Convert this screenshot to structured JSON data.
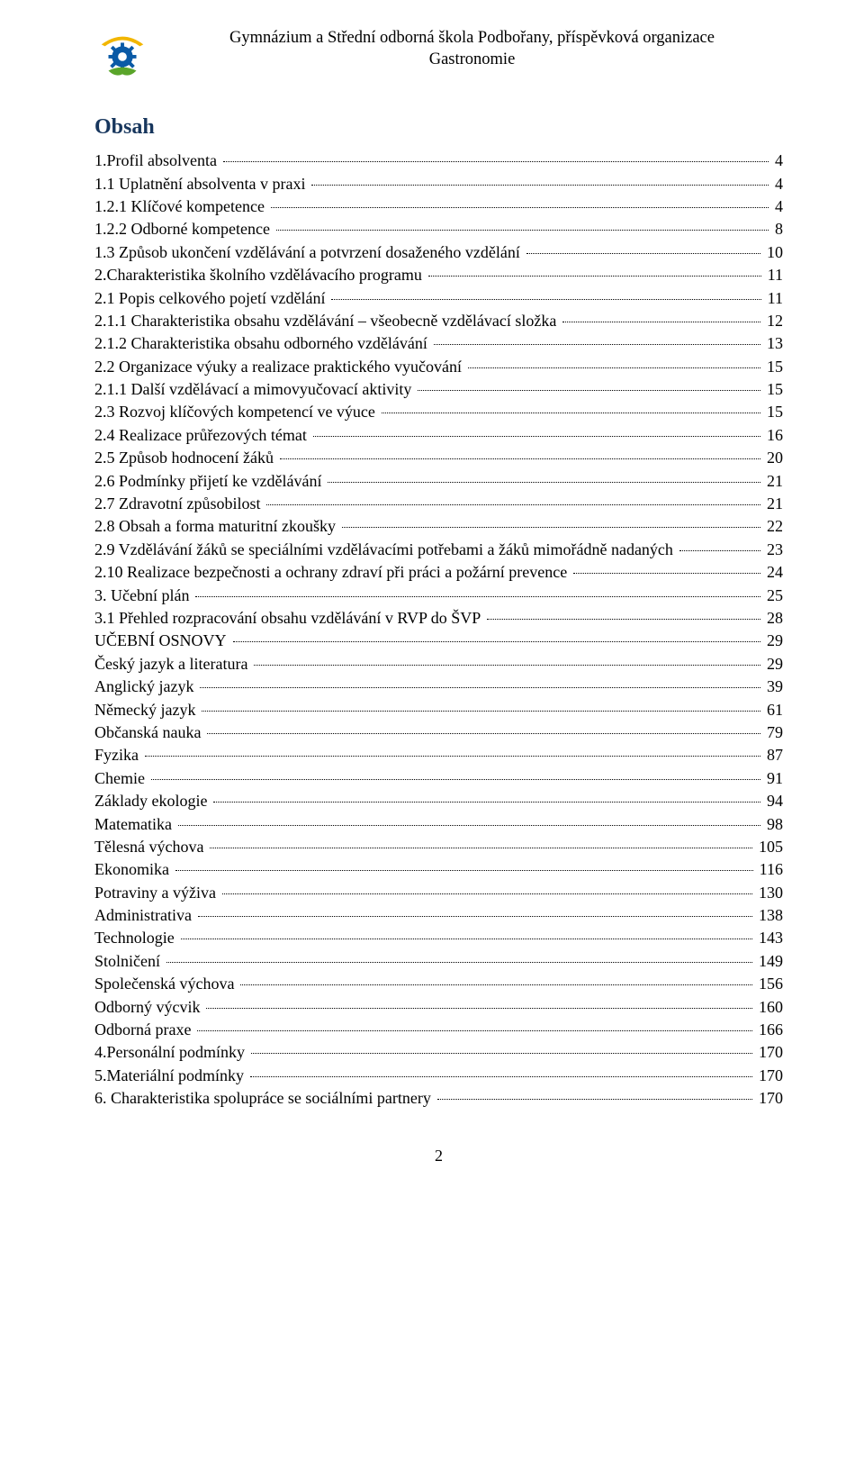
{
  "header": {
    "line1": "Gymnázium a Střední odborná škola Podbořany, příspěvková organizace",
    "line2": "Gastronomie"
  },
  "toc": {
    "title": "Obsah",
    "entries": [
      {
        "label": "1.Profil absolventa",
        "page": "4"
      },
      {
        "label": "1.1 Uplatnění absolventa v praxi",
        "page": "4"
      },
      {
        "label": "1.2.1 Klíčové kompetence",
        "page": "4"
      },
      {
        "label": "1.2.2 Odborné kompetence",
        "page": "8"
      },
      {
        "label": "1.3 Způsob ukončení vzdělávání a potvrzení dosaženého vzdělání",
        "page": "10"
      },
      {
        "label": "2.Charakteristika školního vzdělávacího programu",
        "page": "11"
      },
      {
        "label": "2.1 Popis celkového pojetí vzdělání",
        "page": "11"
      },
      {
        "label": "2.1.1 Charakteristika obsahu vzdělávání – všeobecně vzdělávací složka",
        "page": "12"
      },
      {
        "label": "2.1.2 Charakteristika obsahu odborného vzdělávání",
        "page": "13"
      },
      {
        "label": "2.2 Organizace výuky a realizace praktického vyučování",
        "page": "15"
      },
      {
        "label": "2.1.1 Další vzdělávací a mimovyučovací aktivity",
        "page": "15"
      },
      {
        "label": "2.3 Rozvoj klíčových kompetencí ve výuce",
        "page": "15"
      },
      {
        "label": "2.4 Realizace průřezových témat",
        "page": "16"
      },
      {
        "label": "2.5 Způsob hodnocení žáků",
        "page": "20"
      },
      {
        "label": "2.6 Podmínky přijetí ke vzdělávání",
        "page": "21"
      },
      {
        "label": "2.7 Zdravotní způsobilost",
        "page": "21"
      },
      {
        "label": "2.8 Obsah a forma maturitní zkoušky",
        "page": "22"
      },
      {
        "label": "2.9 Vzdělávání žáků se speciálními vzdělávacími potřebami a žáků mimořádně nadaných",
        "page": "23"
      },
      {
        "label": "2.10 Realizace bezpečnosti a ochrany zdraví při práci a požární prevence",
        "page": "24"
      },
      {
        "label": "3. Učební plán",
        "page": "25"
      },
      {
        "label": "3.1 Přehled rozpracování obsahu vzdělávání v RVP do ŠVP",
        "page": "28"
      },
      {
        "label": "UČEBNÍ OSNOVY",
        "page": "29"
      },
      {
        "label": "Český jazyk a literatura",
        "page": "29"
      },
      {
        "label": "Anglický jazyk",
        "page": "39"
      },
      {
        "label": "Německý jazyk",
        "page": "61"
      },
      {
        "label": "Občanská nauka",
        "page": "79"
      },
      {
        "label": "Fyzika",
        "page": "87"
      },
      {
        "label": "Chemie",
        "page": "91"
      },
      {
        "label": "Základy ekologie",
        "page": "94"
      },
      {
        "label": "Matematika",
        "page": "98"
      },
      {
        "label": "Tělesná výchova",
        "page": "105"
      },
      {
        "label": "Ekonomika",
        "page": "116"
      },
      {
        "label": "Potraviny a výživa",
        "page": "130"
      },
      {
        "label": "Administrativa",
        "page": "138"
      },
      {
        "label": "Technologie",
        "page": "143"
      },
      {
        "label": "Stolničení",
        "page": "149"
      },
      {
        "label": "Společenská výchova",
        "page": "156"
      },
      {
        "label": "Odborný výcvik",
        "page": "160"
      },
      {
        "label": "Odborná praxe",
        "page": "166"
      },
      {
        "label": "4.Personální podmínky",
        "page": "170"
      },
      {
        "label": "5.Materiální podmínky",
        "page": "170"
      },
      {
        "label": "6. Charakteristika spolupráce se sociálními partnery",
        "page": "170"
      }
    ]
  },
  "logo_colors": {
    "sun": "#f2b600",
    "gear": "#0a5aa6",
    "leaf": "#5aa52a"
  },
  "footer": {
    "page_number": "2"
  }
}
